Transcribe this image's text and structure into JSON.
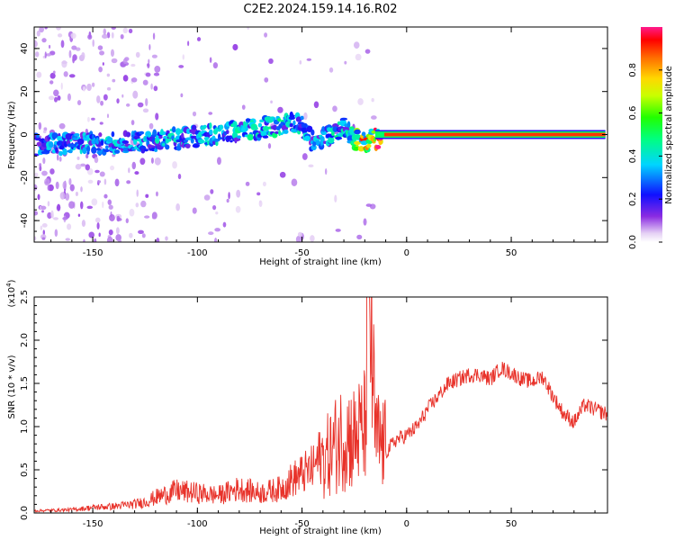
{
  "title": "C2E2.2024.159.14.16.R02",
  "chart_data": [
    {
      "type": "heatmap",
      "xlabel": "Height of straight line (km)",
      "ylabel": "Frequency (Hz)",
      "xlim": [
        -178,
        96
      ],
      "ylim": [
        -50,
        50
      ],
      "xticks": [
        -150,
        -100,
        -50,
        0,
        50
      ],
      "yticks": [
        -40,
        -20,
        0,
        20,
        40
      ],
      "colorbar": {
        "label": "Normalized spectral amplitude",
        "range": [
          0.0,
          1.0
        ],
        "ticks": [
          "0.0",
          "0.2",
          "0.4",
          "0.6",
          "0.8"
        ],
        "tick_values": [
          0.0,
          0.2,
          0.4,
          0.6,
          0.8
        ]
      },
      "ridge": {
        "description_free": true,
        "x": [
          -176,
          -150,
          -120,
          -100,
          -80,
          -60,
          -52,
          -45,
          -35,
          -30,
          -25,
          -20,
          -15,
          -10,
          -5,
          0,
          10,
          20,
          50,
          95
        ],
        "frequency": [
          -5,
          -4,
          -3,
          -1,
          2,
          4,
          6,
          -3,
          1,
          4,
          -2,
          -3,
          -2,
          -1,
          0,
          0,
          0,
          0,
          0,
          0
        ],
        "amplitude": [
          0.3,
          0.35,
          0.35,
          0.35,
          0.38,
          0.4,
          0.45,
          0.3,
          0.4,
          0.4,
          0.5,
          0.85,
          0.85,
          0.9,
          0.9,
          0.9,
          0.9,
          0.9,
          0.9,
          0.9
        ]
      },
      "grid": false
    },
    {
      "type": "line",
      "xlabel": "Height of straight line (km)",
      "ylabel": "SNR (10 * v/v)",
      "yscale_label": "(x10",
      "yscale_exp": "4",
      "yscale_close": ")",
      "xlim": [
        -178,
        96
      ],
      "ylim": [
        0,
        2.5
      ],
      "xticks": [
        -150,
        -100,
        -50,
        0,
        50
      ],
      "yticks": [
        "0.0",
        "0.5",
        "1.0",
        "1.5",
        "2.0",
        "2.5"
      ],
      "ytick_values": [
        0,
        0.5,
        1.0,
        1.5,
        2.0,
        2.5
      ],
      "color": "#e8322a",
      "series": [
        {
          "x": [
            -178,
            -160,
            -150,
            -140,
            -130,
            -125,
            -120,
            -110,
            -100,
            -90,
            -80,
            -70,
            -60,
            -55,
            -50,
            -45,
            -40,
            -35,
            -30,
            -25,
            -20,
            -18,
            -15,
            -10,
            -5,
            0,
            5,
            10,
            15,
            20,
            25,
            30,
            35,
            40,
            45,
            50,
            55,
            60,
            65,
            70,
            75,
            80,
            85,
            90,
            95
          ],
          "y": [
            0.02,
            0.03,
            0.05,
            0.06,
            0.08,
            0.1,
            0.14,
            0.2,
            0.18,
            0.16,
            0.22,
            0.18,
            0.22,
            0.3,
            0.35,
            0.4,
            0.55,
            0.7,
            0.85,
            0.8,
            0.9,
            2.5,
            0.8,
            0.7,
            0.85,
            0.9,
            1.0,
            1.2,
            1.35,
            1.5,
            1.55,
            1.6,
            1.6,
            1.55,
            1.68,
            1.62,
            1.55,
            1.52,
            1.58,
            1.35,
            1.15,
            1.05,
            1.25,
            1.2,
            1.15
          ]
        }
      ],
      "grid": false
    }
  ]
}
